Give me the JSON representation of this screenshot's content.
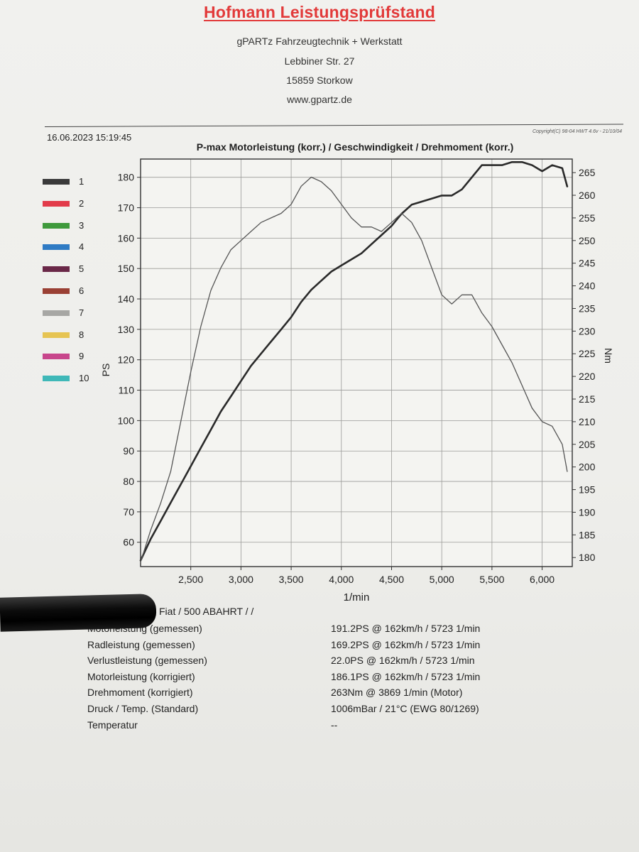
{
  "header": {
    "title": "Hofmann Leistungsprüfstand",
    "company": "gPARTz Fahrzeugtechnik + Werkstatt",
    "street": "Lebbiner Str. 27",
    "city": "15859 Storkow",
    "website": "www.gpartz.de"
  },
  "meta": {
    "datetime": "16.06.2023 15:19:45",
    "copyright": "Copyright(C) 98-04 HWT 4.6v - 21/10/04"
  },
  "legend": [
    {
      "label": "1",
      "color": "#3a3a3a"
    },
    {
      "label": "2",
      "color": "#e23b4a"
    },
    {
      "label": "3",
      "color": "#3f9a3c"
    },
    {
      "label": "4",
      "color": "#2f7bc4"
    },
    {
      "label": "5",
      "color": "#6a2848"
    },
    {
      "label": "6",
      "color": "#9a4034"
    },
    {
      "label": "7",
      "color": "#a7a7a4"
    },
    {
      "label": "8",
      "color": "#e6c452"
    },
    {
      "label": "9",
      "color": "#c8468c"
    },
    {
      "label": "10",
      "color": "#3fb8b8"
    }
  ],
  "chart_data": {
    "type": "line",
    "title": "P-max Motorleistung (korr.) / Geschwindigkeit / Drehmoment (korr.)",
    "xlabel": "1/min",
    "ylabel_left": "PS",
    "ylabel_right": "Nm",
    "xlim": [
      2000,
      6300
    ],
    "ylim_left": [
      52,
      186
    ],
    "ylim_right": [
      178,
      268
    ],
    "x_ticks": [
      2500,
      3000,
      3500,
      4000,
      4500,
      5000,
      5500,
      6000
    ],
    "x_tick_labels": [
      "2,500",
      "3,000",
      "3,500",
      "4,000",
      "4,500",
      "5,000",
      "5,500",
      "6,000"
    ],
    "y_left_ticks": [
      60,
      70,
      80,
      90,
      100,
      110,
      120,
      130,
      140,
      150,
      160,
      170,
      180
    ],
    "y_right_ticks": [
      180,
      185,
      190,
      195,
      200,
      205,
      210,
      215,
      220,
      225,
      230,
      235,
      240,
      245,
      250,
      255,
      260,
      265
    ],
    "grid": true,
    "series": [
      {
        "axis": "left",
        "x": [
          2000,
          2100,
          2200,
          2300,
          2400,
          2500,
          2600,
          2700,
          2800,
          2900,
          3000,
          3100,
          3200,
          3300,
          3400,
          3500,
          3600,
          3700,
          3800,
          3900,
          4000,
          4100,
          4200,
          4300,
          4400,
          4500,
          4600,
          4700,
          4800,
          4900,
          5000,
          5100,
          5200,
          5300,
          5400,
          5500,
          5600,
          5700,
          5800,
          5900,
          6000,
          6100,
          6200,
          6250
        ],
        "values": [
          54,
          61,
          67,
          73,
          79,
          85,
          91,
          97,
          103,
          108,
          113,
          118,
          122,
          126,
          130,
          134,
          139,
          143,
          146,
          149,
          151,
          153,
          155,
          158,
          161,
          164,
          168,
          171,
          172,
          173,
          174,
          174,
          176,
          180,
          184,
          184,
          184,
          185,
          185,
          184,
          182,
          184,
          183,
          177
        ]
      },
      {
        "axis": "right",
        "x": [
          2000,
          2100,
          2200,
          2300,
          2400,
          2500,
          2600,
          2700,
          2800,
          2900,
          3000,
          3100,
          3200,
          3300,
          3400,
          3500,
          3600,
          3700,
          3800,
          3900,
          4000,
          4100,
          4200,
          4300,
          4400,
          4500,
          4600,
          4700,
          4800,
          4900,
          5000,
          5100,
          5200,
          5300,
          5400,
          5500,
          5600,
          5700,
          5800,
          5900,
          6000,
          6100,
          6200,
          6250
        ],
        "values": [
          179,
          186,
          192,
          199,
          210,
          221,
          231,
          239,
          244,
          248,
          250,
          252,
          254,
          255,
          256,
          258,
          262,
          264,
          263,
          261,
          258,
          255,
          253,
          253,
          252,
          254,
          256,
          254,
          250,
          244,
          238,
          236,
          238,
          238,
          234,
          231,
          227,
          223,
          218,
          213,
          210,
          209,
          205,
          199
        ]
      }
    ]
  },
  "results": {
    "vehicle": "Fiat / 500 ABAHRT / /",
    "rows": [
      {
        "label": "Motorleistung (gemessen)",
        "value": "191.2PS @ 162km/h / 5723 1/min"
      },
      {
        "label": "Radleistung (gemessen)",
        "value": "169.2PS @ 162km/h / 5723 1/min"
      },
      {
        "label": "Verlustleistung (gemessen)",
        "value": "22.0PS @ 162km/h / 5723 1/min"
      },
      {
        "label": "Motorleistung (korrigiert)",
        "value": "186.1PS @ 162km/h / 5723 1/min"
      },
      {
        "label": "Drehmoment (korrigiert)",
        "value": "263Nm @ 3869 1/min (Motor)"
      },
      {
        "label": "Druck / Temp. (Standard)",
        "value": "1006mBar / 21°C  (EWG 80/1269)"
      },
      {
        "label": "Temperatur",
        "value": "--"
      }
    ]
  }
}
